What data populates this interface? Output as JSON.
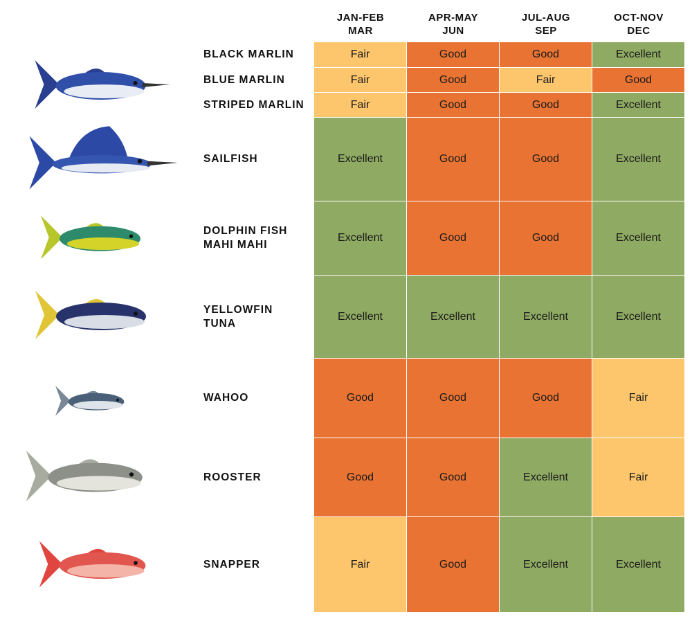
{
  "chart_data": {
    "type": "table",
    "columns": [
      {
        "line1": "JAN-FEB",
        "line2": "MAR"
      },
      {
        "line1": "APR-MAY",
        "line2": "JUN"
      },
      {
        "line1": "JUL-AUG",
        "line2": "SEP"
      },
      {
        "line1": "OCT-NOV",
        "line2": "DEC"
      }
    ],
    "rows": [
      {
        "name": [
          "BLACK MARLIN"
        ],
        "values": [
          "Fair",
          "Good",
          "Good",
          "Excellent"
        ]
      },
      {
        "name": [
          "BLUE MARLIN"
        ],
        "values": [
          "Fair",
          "Good",
          "Fair",
          "Good"
        ]
      },
      {
        "name": [
          "STRIPED MARLIN"
        ],
        "values": [
          "Fair",
          "Good",
          "Good",
          "Excellent"
        ]
      },
      {
        "name": [
          "SAILFISH"
        ],
        "values": [
          "Excellent",
          "Good",
          "Good",
          "Excellent"
        ]
      },
      {
        "name": [
          "DOLPHIN FISH",
          "MAHI MAHI"
        ],
        "values": [
          "Excellent",
          "Good",
          "Good",
          "Excellent"
        ]
      },
      {
        "name": [
          "YELLOWFIN",
          "TUNA"
        ],
        "values": [
          "Excellent",
          "Excellent",
          "Excellent",
          "Excellent"
        ]
      },
      {
        "name": [
          "WAHOO"
        ],
        "values": [
          "Good",
          "Good",
          "Good",
          "Fair"
        ]
      },
      {
        "name": [
          "ROOSTER"
        ],
        "values": [
          "Good",
          "Good",
          "Excellent",
          "Fair"
        ]
      },
      {
        "name": [
          "SNAPPER"
        ],
        "values": [
          "Fair",
          "Good",
          "Excellent",
          "Excellent"
        ]
      }
    ],
    "rating_colors": {
      "Fair": "#FDC66C",
      "Good": "#E87333",
      "Excellent": "#8FAA62"
    }
  }
}
